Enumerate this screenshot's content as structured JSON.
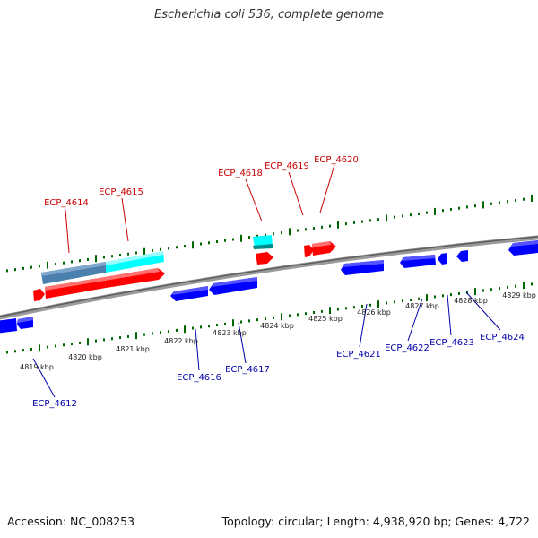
{
  "title": "Escherichia coli 536, complete genome",
  "footer": {
    "accession": "Accession: NC_008253",
    "summary": "Topology: circular; Length: 4,938,920 bp; Genes: 4,722"
  },
  "colors": {
    "forward_label": "#cc0000",
    "reverse_label": "#0000aa",
    "forward_gene": "#ff0000",
    "reverse_gene": "#0000ff",
    "highlight_cyan": "#00ffff",
    "highlight_steel": "#4a7fae",
    "tick": "#006600",
    "backbone": "#888888"
  },
  "ruler": {
    "unit": "kbp",
    "labels": [
      "4819 kbp",
      "4820 kbp",
      "4821 kbp",
      "4822 kbp",
      "4823 kbp",
      "4824 kbp",
      "4825 kbp",
      "4826 kbp",
      "4827 kbp",
      "4828 kbp",
      "4829 kbp"
    ]
  },
  "forward_labels": [
    "ECP_4614",
    "ECP_4615",
    "ECP_4618",
    "ECP_4619",
    "ECP_4620"
  ],
  "reverse_labels": [
    "ECP_4612",
    "ECP_4616",
    "ECP_4617",
    "ECP_4621",
    "ECP_4622",
    "ECP_4623",
    "ECP_4624"
  ]
}
